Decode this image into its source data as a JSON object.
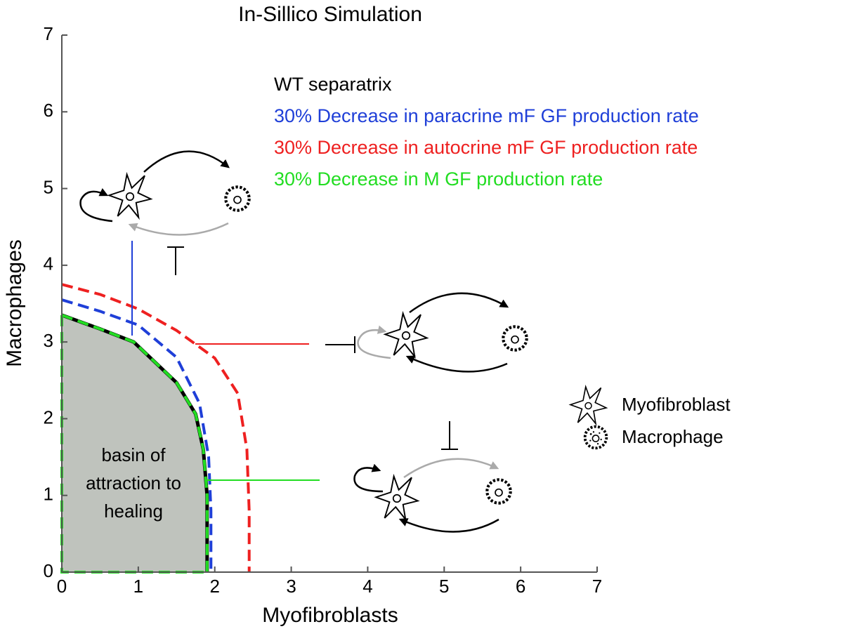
{
  "chart_data": {
    "type": "line",
    "title": "In-Sillico Simulation",
    "xlabel": "Myofibroblasts",
    "ylabel": "Macrophages",
    "xlim": [
      0,
      7
    ],
    "ylim": [
      0,
      7
    ],
    "xticks": [
      0,
      1,
      2,
      3,
      4,
      5,
      6,
      7
    ],
    "yticks": [
      0,
      1,
      2,
      3,
      4,
      5,
      6,
      7
    ],
    "fill_color": "#bfc3bd",
    "series": [
      {
        "name": "WT separatrix",
        "color": "#000000",
        "dashed": false,
        "x": [
          0,
          0.5,
          0.94,
          1.5,
          1.75,
          1.85,
          1.9,
          1.9
        ],
        "values": [
          3.35,
          3.17,
          3.0,
          2.47,
          2.06,
          1.6,
          1.0,
          0
        ]
      },
      {
        "name": "30% Decrease in paracrine mF GF production rate",
        "color": "#1f3fd8",
        "dashed": true,
        "x": [
          0,
          0.5,
          1,
          1.5,
          1.8,
          1.92,
          1.95,
          1.95
        ],
        "values": [
          3.55,
          3.4,
          3.22,
          2.8,
          2.2,
          1.5,
          0.8,
          0
        ]
      },
      {
        "name": "30% Decrease in autocrine mF GF production rate",
        "color": "#ee2020",
        "dashed": true,
        "x": [
          0,
          0.5,
          1,
          1.5,
          2,
          2.3,
          2.42,
          2.45,
          2.45
        ],
        "values": [
          3.75,
          3.62,
          3.43,
          3.15,
          2.79,
          2.33,
          1.6,
          0.8,
          0
        ]
      },
      {
        "name": "30% Decrease in M GF production rate",
        "color": "#22dd22",
        "dashed": true,
        "x": [
          0,
          0.5,
          0.94,
          1.5,
          1.75,
          1.85,
          1.9,
          1.9
        ],
        "values": [
          3.35,
          3.17,
          3.0,
          2.47,
          2.06,
          1.6,
          1.0,
          0
        ]
      }
    ],
    "annotation_lines": [
      "basin of",
      "attraction to",
      "healing"
    ],
    "icon_legend": [
      "Myofibroblast",
      "Macrophage"
    ]
  }
}
